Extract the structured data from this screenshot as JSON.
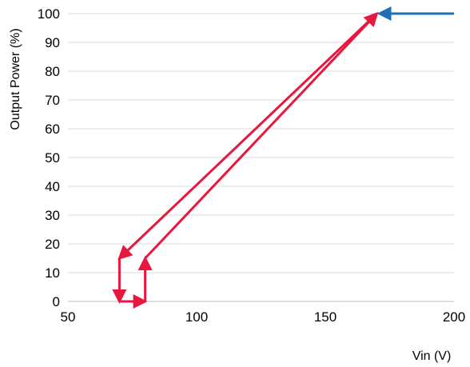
{
  "chart_data": {
    "type": "line",
    "title": "",
    "xlabel": "Vin (V)",
    "ylabel": "Output Power (%)",
    "xlim": [
      50,
      200
    ],
    "ylim": [
      0,
      100
    ],
    "xticks": [
      50,
      100,
      150,
      200
    ],
    "yticks": [
      0,
      10,
      20,
      30,
      40,
      50,
      60,
      70,
      80,
      90,
      100
    ],
    "grid": "horizontal",
    "legend": "none",
    "series": [
      {
        "color": "#1f6fb5",
        "points": [
          [
            200,
            100
          ],
          [
            171,
            100
          ]
        ]
      },
      {
        "color": "#e8173f",
        "points": [
          [
            170,
            100
          ],
          [
            70,
            15
          ],
          [
            70,
            0
          ],
          [
            80,
            0
          ],
          [
            80,
            15
          ],
          [
            170,
            100
          ]
        ]
      }
    ]
  }
}
